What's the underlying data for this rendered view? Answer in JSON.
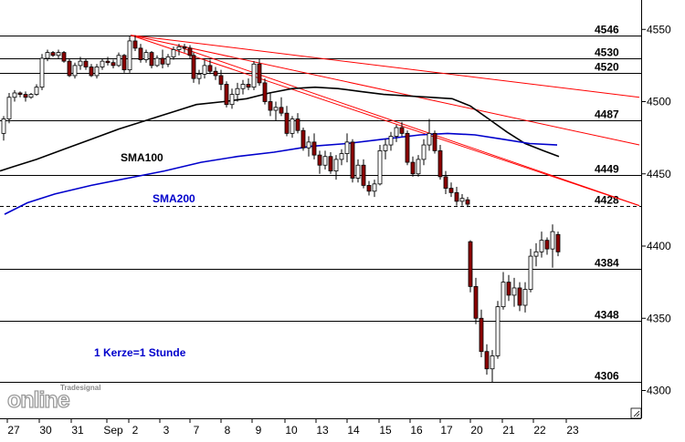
{
  "chart_data": {
    "type": "candlestick",
    "title": "",
    "timeframe_note": "1 Kerze=1 Stunde",
    "watermark": "Tradesignal online",
    "y_axis": {
      "ylim": [
        4290,
        4562
      ],
      "ticks": [
        "4550",
        "4500",
        "4450",
        "4400",
        "4350",
        "4300"
      ],
      "position": "right"
    },
    "x_axis": {
      "ticks": [
        "27",
        "30",
        "31",
        "Sep",
        "2",
        "3",
        "7",
        "8",
        "9",
        "10",
        "13",
        "14",
        "15",
        "16",
        "17",
        "20",
        "21",
        "22",
        "23"
      ]
    },
    "grid": false,
    "colors": {
      "bull": "#ffffff",
      "bear": "#8b0000",
      "wick": "#000000",
      "sma100": "#000000",
      "sma200": "#0000cc",
      "trend": "#ff0000",
      "level": "#000000"
    },
    "levels": [
      {
        "value": 4546,
        "label": "4546",
        "style": "solid"
      },
      {
        "value": 4530,
        "label": "4530",
        "style": "solid"
      },
      {
        "value": 4520,
        "label": "4520",
        "style": "solid"
      },
      {
        "value": 4487,
        "label": "4487",
        "style": "solid"
      },
      {
        "value": 4449,
        "label": "4449",
        "style": "solid"
      },
      {
        "value": 4428,
        "label": "4428",
        "style": "dashed"
      },
      {
        "value": 4384,
        "label": "4384",
        "style": "solid"
      },
      {
        "value": 4348,
        "label": "4348",
        "style": "solid"
      },
      {
        "value": 4306,
        "label": "4306",
        "style": "solid"
      }
    ],
    "series": [
      {
        "name": "SMA100",
        "type": "line",
        "color": "#000000",
        "values": [
          [
            0,
            4452
          ],
          [
            15,
            4455
          ],
          [
            40,
            4460
          ],
          [
            70,
            4467
          ],
          [
            100,
            4474
          ],
          [
            130,
            4481
          ],
          [
            160,
            4487
          ],
          [
            190,
            4493
          ],
          [
            215,
            4498
          ],
          [
            245,
            4500
          ],
          [
            270,
            4502
          ],
          [
            295,
            4506
          ],
          [
            320,
            4509
          ],
          [
            345,
            4510
          ],
          [
            370,
            4509
          ],
          [
            395,
            4507
          ],
          [
            420,
            4505
          ],
          [
            445,
            4504
          ],
          [
            470,
            4503
          ],
          [
            495,
            4502
          ],
          [
            515,
            4497
          ],
          [
            535,
            4488
          ],
          [
            555,
            4479
          ],
          [
            575,
            4471
          ],
          [
            595,
            4466
          ],
          [
            612,
            4462
          ]
        ]
      },
      {
        "name": "SMA200",
        "type": "line",
        "color": "#0000cc",
        "values": [
          [
            5,
            4422
          ],
          [
            30,
            4430
          ],
          [
            60,
            4436
          ],
          [
            100,
            4442
          ],
          [
            140,
            4447
          ],
          [
            180,
            4452
          ],
          [
            220,
            4458
          ],
          [
            260,
            4462
          ],
          [
            300,
            4465
          ],
          [
            340,
            4469
          ],
          [
            380,
            4471
          ],
          [
            420,
            4474
          ],
          [
            460,
            4477
          ],
          [
            490,
            4478
          ],
          [
            520,
            4477
          ],
          [
            550,
            4474
          ],
          [
            580,
            4471
          ],
          [
            610,
            4470
          ]
        ]
      },
      {
        "name": "Hourly candles",
        "type": "candlestick",
        "ohlc": [
          [
            4,
            4478,
            4490,
            4473,
            4488
          ],
          [
            10,
            4488,
            4506,
            4485,
            4503
          ],
          [
            16,
            4503,
            4508,
            4500,
            4506
          ],
          [
            22,
            4506,
            4507,
            4503,
            4505
          ],
          [
            28,
            4505,
            4507,
            4500,
            4503
          ],
          [
            34,
            4503,
            4506,
            4502,
            4505
          ],
          [
            40,
            4505,
            4512,
            4504,
            4510
          ],
          [
            46,
            4510,
            4533,
            4508,
            4530
          ],
          [
            52,
            4530,
            4536,
            4528,
            4534
          ],
          [
            58,
            4534,
            4535,
            4531,
            4532
          ],
          [
            64,
            4532,
            4536,
            4530,
            4534
          ],
          [
            70,
            4534,
            4535,
            4527,
            4528
          ],
          [
            76,
            4528,
            4530,
            4517,
            4518
          ],
          [
            82,
            4518,
            4527,
            4516,
            4525
          ],
          [
            88,
            4525,
            4531,
            4522,
            4528
          ],
          [
            94,
            4528,
            4530,
            4522,
            4524
          ],
          [
            100,
            4524,
            4526,
            4517,
            4518
          ],
          [
            106,
            4518,
            4526,
            4516,
            4524
          ],
          [
            112,
            4524,
            4530,
            4522,
            4528
          ],
          [
            118,
            4528,
            4531,
            4525,
            4527
          ],
          [
            124,
            4527,
            4529,
            4523,
            4525
          ],
          [
            130,
            4525,
            4534,
            4524,
            4532
          ],
          [
            136,
            4532,
            4533,
            4520,
            4522
          ],
          [
            142,
            4522,
            4545,
            4520,
            4542
          ],
          [
            148,
            4542,
            4546,
            4535,
            4537
          ],
          [
            154,
            4537,
            4540,
            4527,
            4529
          ],
          [
            160,
            4529,
            4536,
            4527,
            4534
          ],
          [
            166,
            4534,
            4535,
            4523,
            4525
          ],
          [
            172,
            4525,
            4532,
            4524,
            4530
          ],
          [
            178,
            4530,
            4536,
            4523,
            4526
          ],
          [
            184,
            4526,
            4533,
            4524,
            4531
          ],
          [
            190,
            4531,
            4538,
            4529,
            4536
          ],
          [
            196,
            4536,
            4540,
            4532,
            4538
          ],
          [
            202,
            4538,
            4540,
            4534,
            4537
          ],
          [
            208,
            4537,
            4539,
            4530,
            4532
          ],
          [
            212,
            4532,
            4534,
            4513,
            4516
          ],
          [
            218,
            4516,
            4522,
            4512,
            4519
          ],
          [
            224,
            4519,
            4529,
            4516,
            4525
          ],
          [
            230,
            4525,
            4529,
            4519,
            4521
          ],
          [
            236,
            4521,
            4524,
            4515,
            4518
          ],
          [
            242,
            4518,
            4522,
            4508,
            4512
          ],
          [
            248,
            4512,
            4514,
            4496,
            4498
          ],
          [
            254,
            4498,
            4509,
            4495,
            4505
          ],
          [
            260,
            4505,
            4513,
            4500,
            4509
          ],
          [
            266,
            4509,
            4515,
            4505,
            4512
          ],
          [
            272,
            4512,
            4516,
            4508,
            4510
          ],
          [
            278,
            4510,
            4528,
            4508,
            4526
          ],
          [
            284,
            4526,
            4530,
            4511,
            4513
          ],
          [
            290,
            4513,
            4516,
            4498,
            4500
          ],
          [
            296,
            4500,
            4506,
            4490,
            4494
          ],
          [
            302,
            4494,
            4500,
            4487,
            4496
          ],
          [
            308,
            4496,
            4503,
            4490,
            4492
          ],
          [
            314,
            4492,
            4497,
            4476,
            4478
          ],
          [
            320,
            4478,
            4490,
            4475,
            4488
          ],
          [
            326,
            4488,
            4492,
            4478,
            4480
          ],
          [
            332,
            4480,
            4482,
            4466,
            4468
          ],
          [
            338,
            4468,
            4476,
            4462,
            4472
          ],
          [
            344,
            4472,
            4478,
            4460,
            4463
          ],
          [
            350,
            4463,
            4466,
            4450,
            4456
          ],
          [
            356,
            4456,
            4466,
            4453,
            4462
          ],
          [
            362,
            4462,
            4465,
            4450,
            4452
          ],
          [
            368,
            4452,
            4463,
            4446,
            4460
          ],
          [
            374,
            4460,
            4467,
            4456,
            4464
          ],
          [
            380,
            4464,
            4478,
            4458,
            4472
          ],
          [
            386,
            4472,
            4474,
            4444,
            4447
          ],
          [
            392,
            4447,
            4460,
            4444,
            4456
          ],
          [
            398,
            4456,
            4460,
            4440,
            4442
          ],
          [
            404,
            4442,
            4445,
            4435,
            4438
          ],
          [
            410,
            4438,
            4446,
            4434,
            4443
          ],
          [
            416,
            4443,
            4470,
            4442,
            4466
          ],
          [
            422,
            4466,
            4474,
            4460,
            4470
          ],
          [
            428,
            4470,
            4479,
            4466,
            4476
          ],
          [
            434,
            4476,
            4484,
            4472,
            4482
          ],
          [
            440,
            4482,
            4486,
            4476,
            4478
          ],
          [
            446,
            4478,
            4480,
            4456,
            4458
          ],
          [
            452,
            4458,
            4462,
            4448,
            4450
          ],
          [
            458,
            4450,
            4463,
            4448,
            4460
          ],
          [
            464,
            4460,
            4474,
            4456,
            4470
          ],
          [
            470,
            4470,
            4488,
            4466,
            4478
          ],
          [
            476,
            4478,
            4480,
            4464,
            4466
          ],
          [
            482,
            4466,
            4470,
            4446,
            4448
          ],
          [
            488,
            4448,
            4452,
            4436,
            4440
          ],
          [
            494,
            4440,
            4444,
            4434,
            4437
          ],
          [
            500,
            4437,
            4441,
            4428,
            4431
          ],
          [
            506,
            4431,
            4436,
            4428,
            4433
          ],
          [
            512,
            4432,
            4434,
            4427,
            4429
          ],
          [
            515,
            4403,
            4404,
            4368,
            4372
          ],
          [
            521,
            4372,
            4378,
            4346,
            4350
          ],
          [
            527,
            4350,
            4356,
            4323,
            4327
          ],
          [
            533,
            4327,
            4332,
            4311,
            4315
          ],
          [
            539,
            4315,
            4328,
            4306,
            4324
          ],
          [
            545,
            4324,
            4362,
            4322,
            4358
          ],
          [
            551,
            4358,
            4382,
            4356,
            4375
          ],
          [
            557,
            4375,
            4380,
            4362,
            4366
          ],
          [
            563,
            4366,
            4378,
            4358,
            4371
          ],
          [
            569,
            4371,
            4375,
            4355,
            4359
          ],
          [
            575,
            4359,
            4375,
            4354,
            4370
          ],
          [
            581,
            4370,
            4398,
            4368,
            4393
          ],
          [
            587,
            4393,
            4402,
            4386,
            4396
          ],
          [
            593,
            4396,
            4410,
            4392,
            4404
          ],
          [
            599,
            4404,
            4406,
            4394,
            4398
          ],
          [
            605,
            4398,
            4415,
            4385,
            4410
          ],
          [
            611,
            4408,
            4410,
            4393,
            4396
          ]
        ]
      }
    ],
    "trendlines": [
      {
        "from": [
          143,
          4546
        ],
        "to": [
          700,
          4503
        ],
        "color": "#ff0000"
      },
      {
        "from": [
          143,
          4546
        ],
        "to": [
          700,
          4470
        ],
        "color": "#ff0000"
      },
      {
        "from": [
          143,
          4546
        ],
        "to": [
          700,
          4428
        ],
        "color": "#ff0000"
      },
      {
        "from": [
          200,
          4537
        ],
        "to": [
          700,
          4428
        ],
        "color": "#ff0000"
      }
    ]
  },
  "labels": {
    "sma100": "SMA100",
    "sma200": "SMA200",
    "timeframe": "1 Kerze=1 Stunde",
    "logo_small": "Tradesignal",
    "logo_big": "online"
  }
}
